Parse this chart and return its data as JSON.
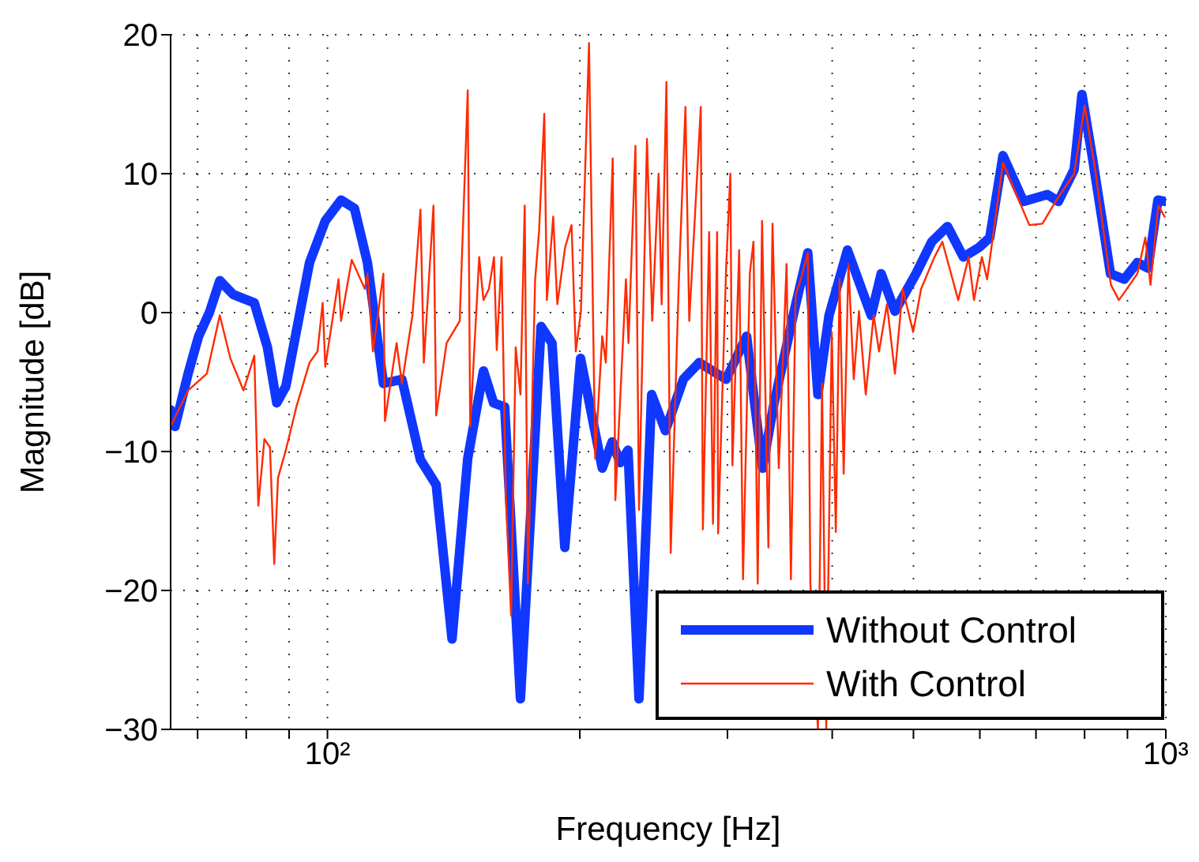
{
  "chart_data": {
    "type": "line",
    "xlabel": "Frequency [Hz]",
    "ylabel": "Magnitude [dB]",
    "log": "x",
    "grid": true,
    "legend": "bottom right",
    "line_style": "solid",
    "marker": "none",
    "xlim": [
      65,
      1000
    ],
    "xticks": [
      {
        "value": 70,
        "label": null
      },
      {
        "value": 80,
        "label": null
      },
      {
        "value": 90,
        "label": null
      },
      {
        "value": 100,
        "label": "10²"
      },
      {
        "value": 200,
        "label": null
      },
      {
        "value": 300,
        "label": null
      },
      {
        "value": 400,
        "label": null
      },
      {
        "value": 500,
        "label": null
      },
      {
        "value": 600,
        "label": null
      },
      {
        "value": 700,
        "label": null
      },
      {
        "value": 800,
        "label": null
      },
      {
        "value": 900,
        "label": null
      },
      {
        "value": 1000,
        "label": "10³"
      }
    ],
    "ylim": [
      -30,
      20
    ],
    "yticks": [
      {
        "value": -30,
        "label": "−30"
      },
      {
        "value": -20,
        "label": "−20"
      },
      {
        "value": -10,
        "label": "−10"
      },
      0,
      10,
      20
    ],
    "series": [
      {
        "name": "Without Control",
        "color": "#0f37ff",
        "x": [
          65,
          65.8,
          68.2,
          70.2,
          72.3,
          74.4,
          77.2,
          81.8,
          84.8,
          87,
          89.2,
          95.2,
          99.4,
          103.8,
          107.7,
          111.6,
          116.6,
          122.7,
          129.1,
          134.8,
          140.8,
          147,
          153.5,
          157.8,
          162.7,
          169.9,
          179.8,
          185.3,
          191.9,
          200.4,
          212.7,
          218.6,
          223.4,
          228.3,
          235.3,
          243.6,
          253,
          265.8,
          277.6,
          298.9,
          316.2,
          330.3,
          340.5,
          360.3,
          374.1,
          384.6,
          396.5,
          417.1,
          445.2,
          457.6,
          475.2,
          503.5,
          525.8,
          549,
          573.4,
          598.9,
          616.6,
          639.4,
          676.4,
          722.1,
          744.4,
          777.4,
          794.3,
          817.7,
          859,
          892,
          924.7,
          952.2,
          978.6,
          997
        ],
        "values": [
          -7,
          -8.2,
          -4.4,
          -1.7,
          0,
          2.3,
          1.3,
          0.7,
          -2.5,
          -6.5,
          -5.3,
          3.6,
          6.6,
          8.1,
          7.5,
          3.6,
          -5.1,
          -4.8,
          -10.6,
          -12.4,
          -23.5,
          -10.5,
          -4.2,
          -6.5,
          -6.8,
          -27.8,
          -1,
          -2.2,
          -16.9,
          -3.3,
          -11.2,
          -9.3,
          -10.8,
          -9.9,
          -27.8,
          -5.9,
          -8.5,
          -4.8,
          -3.6,
          -4.8,
          -1.7,
          -11.2,
          -6.7,
          0.1,
          4.3,
          -5.9,
          -0.2,
          4.5,
          -0.2,
          2.8,
          0.1,
          2.8,
          5.1,
          6.2,
          4,
          4.7,
          5.4,
          11.3,
          8,
          8.5,
          8,
          10.3,
          15.7,
          11.1,
          2.8,
          2.4,
          3.6,
          3.2,
          8.1,
          8
        ]
      },
      {
        "name": "With Control",
        "color": "#ff2a00",
        "x": [
          65,
          68.2,
          71.8,
          74.4,
          76.6,
          79.4,
          81.8,
          82.7,
          84.1,
          85.4,
          86.4,
          87.3,
          89.2,
          91.8,
          95.2,
          97.3,
          98.7,
          99.4,
          103.1,
          103.8,
          106.9,
          110.8,
          111.6,
          113.3,
          116.6,
          117.1,
          119.1,
          120.9,
          122.7,
          126.3,
          129.1,
          130.3,
          133.8,
          134.8,
          138.7,
          143.8,
          147,
          148,
          151.7,
          153.5,
          155.8,
          158,
          159.2,
          161.3,
          163.2,
          165.6,
          167.7,
          169.9,
          171.9,
          173.4,
          176.9,
          178.8,
          181.4,
          182.7,
          185.9,
          188,
          192.1,
          195.5,
          197.8,
          200.6,
          205.1,
          208.6,
          212.7,
          214.8,
          218.9,
          220.5,
          227,
          228.6,
          233,
          235.3,
          240.5,
          244,
          248.3,
          250.4,
          253.7,
          256.7,
          262.4,
          267.3,
          270.1,
          274,
          278.8,
          280.4,
          285.3,
          288.3,
          291.6,
          292.4,
          298.9,
          302.4,
          304.1,
          309.8,
          313.1,
          319,
          322.2,
          326,
          329.9,
          335.7,
          339.5,
          345.4,
          352.9,
          357.1,
          361.8,
          367,
          374.1,
          376.7,
          384.6,
          389,
          393.5,
          399.5,
          404,
          408.2,
          412.8,
          418.2,
          424.4,
          430.5,
          438.6,
          448.2,
          454.9,
          464.9,
          475.2,
          485.5,
          499.6,
          510.6,
          529.7,
          541.3,
          565.4,
          581.8,
          590.4,
          603.4,
          612.1,
          639.4,
          687.4,
          712.5,
          738.8,
          777.4,
          800.3,
          823.6,
          860,
          879,
          898.3,
          924.7,
          945.2,
          958.8,
          979.7,
          997
        ],
        "values": [
          -8.2,
          -5.6,
          -4.4,
          -0.2,
          -3.3,
          -5.6,
          -3.1,
          -13.9,
          -9.1,
          -9.7,
          -18.1,
          -11.9,
          -9.9,
          -6.8,
          -3.6,
          -2.8,
          0.7,
          -3.9,
          2.4,
          -0.6,
          3.8,
          1.7,
          2.8,
          -2.8,
          2.8,
          -7.8,
          -4.8,
          -2.2,
          -5.1,
          -0.2,
          7.4,
          -3.6,
          7.7,
          -7.4,
          -2.2,
          -0.6,
          16,
          -8.2,
          4,
          0.9,
          1.7,
          4,
          -2.7,
          4,
          -13.1,
          -21.8,
          -2.5,
          -5.9,
          7.7,
          -19.5,
          2.4,
          5.8,
          14.3,
          0.9,
          6.9,
          0.6,
          4.7,
          6.3,
          -2.8,
          0.1,
          19.4,
          -10.5,
          -1.7,
          -3.6,
          11.1,
          -13.5,
          2.4,
          -2.2,
          12,
          -14.2,
          12.5,
          -0.6,
          10,
          0.6,
          16.6,
          -17.3,
          2,
          14.8,
          -0.6,
          6.3,
          14.8,
          -15.6,
          5.8,
          -15.2,
          5.8,
          -15.9,
          3.2,
          10,
          -11,
          4.5,
          -19.2,
          2.8,
          5.1,
          -19.5,
          6.6,
          -16.9,
          6.4,
          -11.2,
          3.5,
          -19.2,
          1.3,
          2.4,
          4.3,
          -19.5,
          -30,
          -5.1,
          -30,
          -1.4,
          -15.8,
          2.4,
          -11.6,
          3.5,
          -4.8,
          0.1,
          -5.9,
          -0.2,
          -2.8,
          0.6,
          -4.4,
          1.7,
          -1.4,
          1.7,
          4,
          5.1,
          0.9,
          4,
          0.9,
          4,
          2.4,
          10.8,
          6.3,
          6.4,
          8,
          10,
          14.9,
          10.3,
          2,
          0.9,
          1.7,
          2.8,
          5.4,
          2,
          7.7,
          6.9
        ]
      }
    ]
  }
}
